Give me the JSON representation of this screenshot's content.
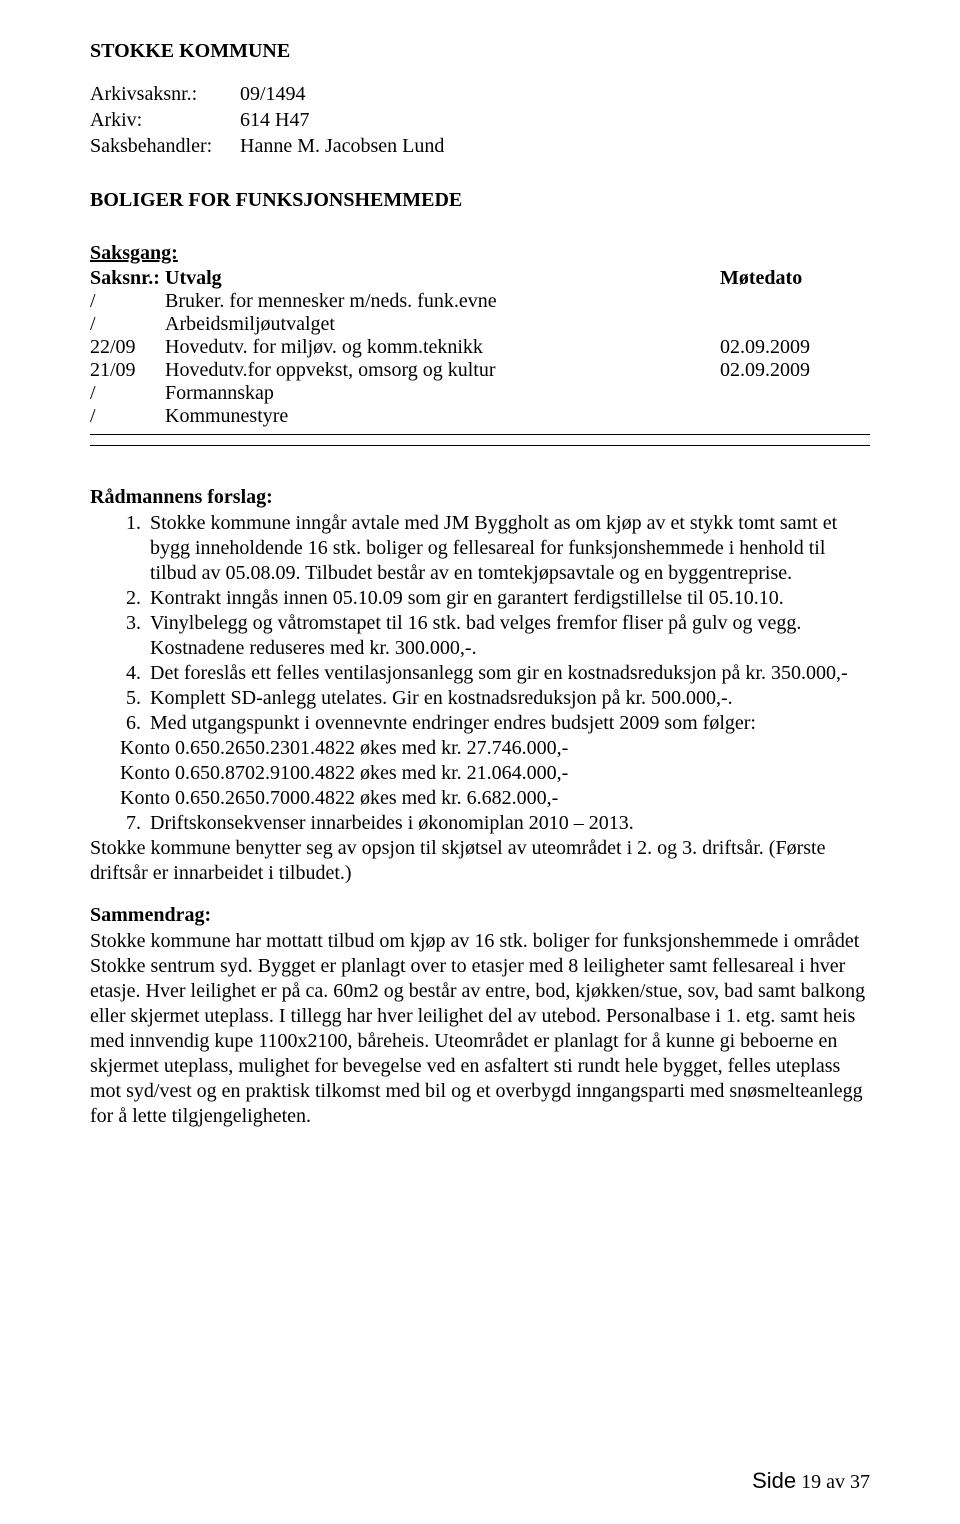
{
  "header": {
    "org": "STOKKE KOMMUNE",
    "arkivsak_label": "Arkivsaksnr.:",
    "arkivsak_value": "09/1494",
    "arkiv_label": "Arkiv:",
    "arkiv_value": "614 H47",
    "saksbehandler_label": "Saksbehandler:",
    "saksbehandler_value": "Hanne M. Jacobsen Lund"
  },
  "case_title": "BOLIGER FOR FUNKSJONSHEMMEDE",
  "saksgang": {
    "heading": "Saksgang:",
    "columns": {
      "saksnr": "Saksnr.:",
      "utvalg": "Utvalg",
      "motedato": "Møtedato"
    },
    "rows": [
      {
        "saksnr": "/",
        "utvalg": "Bruker. for mennesker m/neds. funk.evne",
        "date": ""
      },
      {
        "saksnr": "/",
        "utvalg": "Arbeidsmiljøutvalget",
        "date": ""
      },
      {
        "saksnr": "22/09",
        "utvalg": "Hovedutv. for miljøv. og komm.teknikk",
        "date": "02.09.2009"
      },
      {
        "saksnr": "21/09",
        "utvalg": "Hovedutv.for oppvekst, omsorg og kultur",
        "date": "02.09.2009"
      },
      {
        "saksnr": "/",
        "utvalg": "Formannskap",
        "date": ""
      },
      {
        "saksnr": "/",
        "utvalg": "Kommunestyre",
        "date": ""
      }
    ]
  },
  "forslag": {
    "heading": "Rådmannens forslag:",
    "items": [
      "Stokke kommune inngår avtale med JM Byggholt as om kjøp av et stykk tomt samt et bygg inneholdende 16 stk. boliger og fellesareal for funksjonshemmede i henhold til tilbud av 05.08.09. Tilbudet består av en tomtekjøpsavtale og en byggentreprise.",
      "Kontrakt inngås innen 05.10.09 som gir en garantert ferdigstillelse til 05.10.10.",
      "Vinylbelegg og våtromstapet til 16 stk. bad velges fremfor fliser på gulv og vegg. Kostnadene reduseres med kr. 300.000,-.",
      "Det foreslås ett felles ventilasjonsanlegg som gir en kostnadsreduksjon på kr. 350.000,-",
      "Komplett SD-anlegg utelates. Gir en kostnadsreduksjon på kr. 500.000,-.",
      "Med utgangspunkt i ovennevnte endringer endres budsjett 2009 som følger:"
    ],
    "konto_lines": [
      "Konto 0.650.2650.2301.4822 økes med kr. 27.746.000,-",
      "Konto 0.650.8702.9100.4822 økes med kr. 21.064.000,-",
      "Konto 0.650.2650.7000.4822 økes med kr.   6.682.000,-"
    ],
    "item7": "Driftskonsekvenser innarbeides i økonomiplan 2010 – 2013.",
    "trailing": "Stokke kommune benytter seg av opsjon til skjøtsel av uteområdet i 2. og 3. driftsår. (Første driftsår er innarbeidet i tilbudet.)"
  },
  "sammendrag": {
    "heading": "Sammendrag:",
    "text": "Stokke kommune har mottatt tilbud om kjøp av 16 stk. boliger for funksjonshemmede i området Stokke sentrum syd. Bygget er planlagt over to etasjer med 8 leiligheter samt fellesareal i hver etasje. Hver leilighet er på ca. 60m2 og består av entre, bod, kjøkken/stue, sov, bad samt balkong eller skjermet uteplass. I tillegg har hver leilighet del av utebod. Personalbase i 1. etg. samt heis med innvendig kupe 1100x2100, båreheis. Uteområdet er planlagt for å kunne gi beboerne en skjermet uteplass, mulighet for bevegelse ved en asfaltert sti rundt hele bygget, felles uteplass mot syd/vest og en praktisk tilkomst med bil og et overbygd inngangsparti med snøsmelteanlegg for å lette tilgjengeligheten."
  },
  "footer": {
    "side_label": "Side",
    "page_current": "19",
    "page_sep": "av",
    "page_total": "37"
  },
  "style": {
    "font_family": "Times New Roman",
    "font_size_pt": 15,
    "text_color": "#000000",
    "background_color": "#ffffff",
    "divider_color": "#000000"
  }
}
